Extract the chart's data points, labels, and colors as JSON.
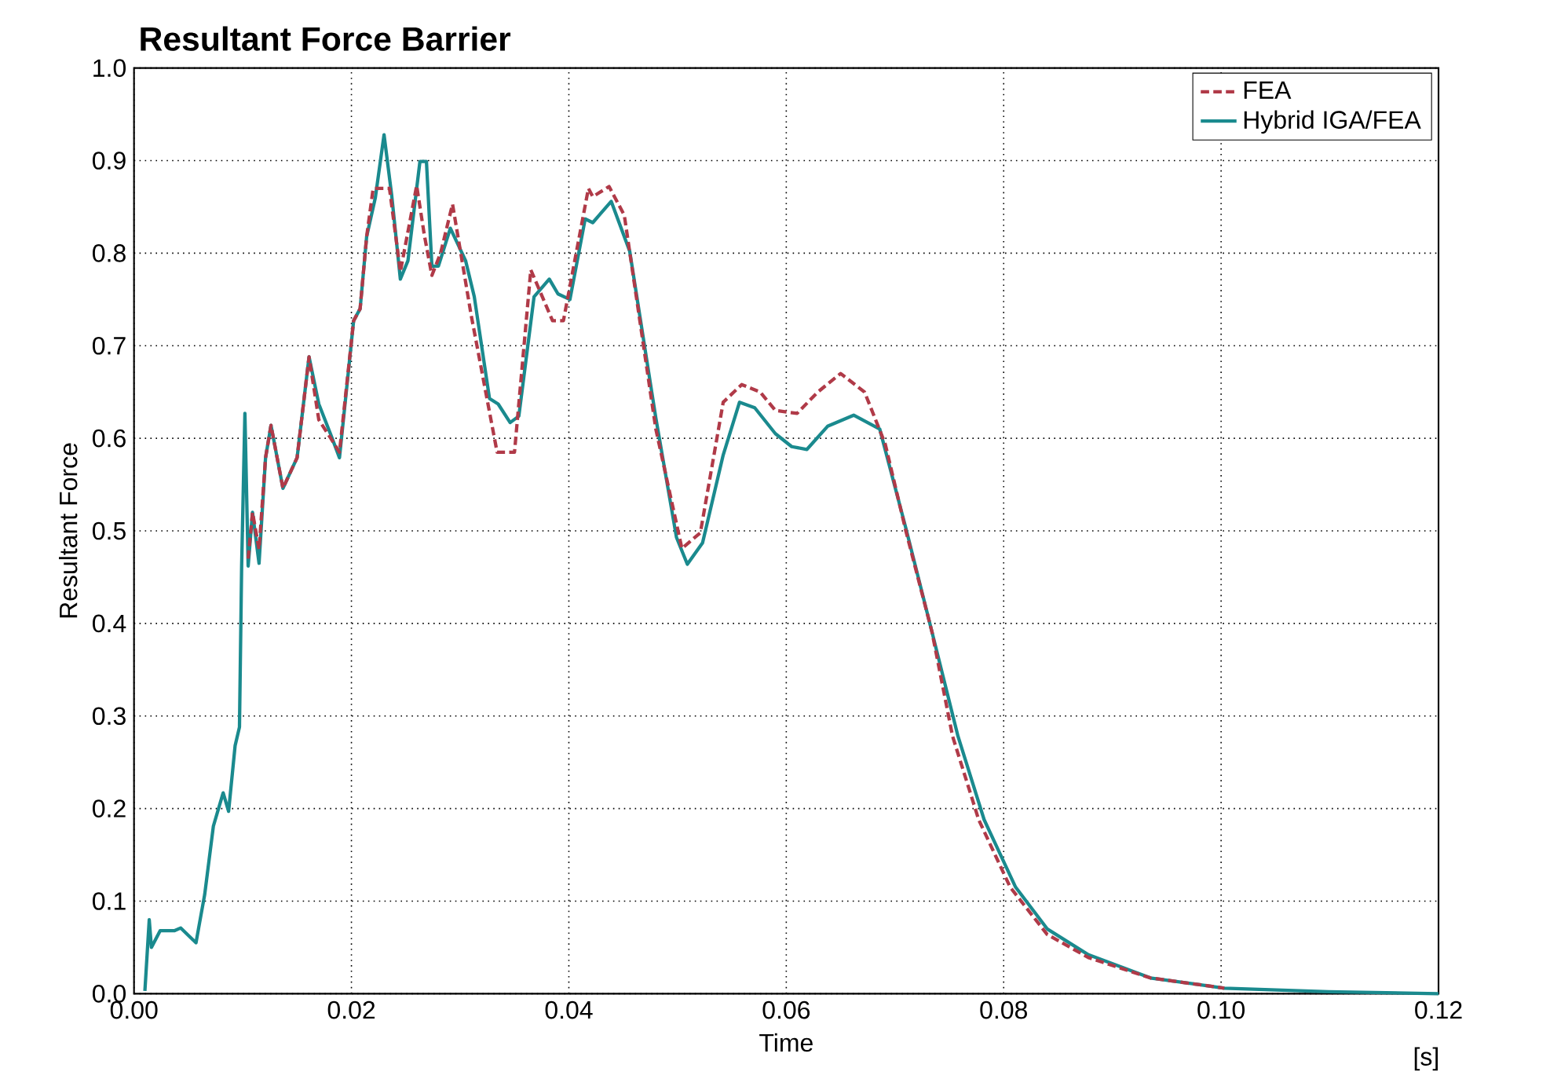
{
  "chart_data": {
    "type": "line",
    "title": "Resultant Force Barrier",
    "xlabel": "Time",
    "ylabel": "Resultant Force",
    "annotations": [
      "[s]"
    ],
    "xlim": [
      0,
      0.12
    ],
    "ylim": [
      0,
      1.0
    ],
    "xticks": [
      {
        "value": 0,
        "label": "0.00"
      },
      {
        "value": 0.02,
        "label": "0.02"
      },
      {
        "value": 0.04,
        "label": "0.04"
      },
      {
        "value": 0.06,
        "label": "0.06"
      },
      {
        "value": 0.08,
        "label": "0.08"
      },
      {
        "value": 0.1,
        "label": "0.10"
      },
      {
        "value": 0.12,
        "label": "0.12"
      }
    ],
    "yticks": [
      {
        "value": 0,
        "label": "0.0"
      },
      0.1,
      0.2,
      0.3,
      0.4,
      0.5,
      0.6,
      0.7,
      0.8,
      0.9,
      {
        "value": 1.0,
        "label": "1.0"
      }
    ],
    "grid": true,
    "legend": "top right",
    "series": [
      {
        "name": "FEA",
        "color": "#b03a48",
        "line_style": "dashed",
        "x": [
          0.0105,
          0.0109,
          0.0115,
          0.0121,
          0.0126,
          0.0137,
          0.015,
          0.0161,
          0.017,
          0.0181,
          0.0189,
          0.0202,
          0.0208,
          0.0214,
          0.022,
          0.0235,
          0.0245,
          0.026,
          0.0267,
          0.0274,
          0.0282,
          0.0293,
          0.031,
          0.0334,
          0.035,
          0.0365,
          0.0385,
          0.0395,
          0.0418,
          0.0422,
          0.0437,
          0.0451,
          0.048,
          0.0504,
          0.0521,
          0.0542,
          0.0559,
          0.0576,
          0.059,
          0.061,
          0.0629,
          0.065,
          0.0672,
          0.0691,
          0.071,
          0.0734,
          0.0753,
          0.0777,
          0.0806,
          0.084,
          0.0878,
          0.0935,
          0.1003
        ],
        "values": [
          0.47,
          0.52,
          0.48,
          0.579,
          0.614,
          0.546,
          0.579,
          0.688,
          0.62,
          0.6,
          0.585,
          0.727,
          0.74,
          0.818,
          0.87,
          0.87,
          0.78,
          0.873,
          0.82,
          0.776,
          0.8,
          0.853,
          0.734,
          0.585,
          0.585,
          0.782,
          0.727,
          0.727,
          0.87,
          0.861,
          0.872,
          0.841,
          0.61,
          0.481,
          0.498,
          0.639,
          0.658,
          0.65,
          0.63,
          0.627,
          0.65,
          0.67,
          0.65,
          0.594,
          0.5,
          0.391,
          0.278,
          0.188,
          0.115,
          0.064,
          0.039,
          0.017,
          0.006
        ]
      },
      {
        "name": "Hybrid IGA/FEA",
        "color": "#1a8a8e",
        "line_style": "solid",
        "x": [
          0.001,
          0.0014,
          0.0016,
          0.0024,
          0.0037,
          0.0043,
          0.0057,
          0.0065,
          0.0073,
          0.0082,
          0.0087,
          0.0093,
          0.0097,
          0.0099,
          0.0102,
          0.0105,
          0.0109,
          0.0115,
          0.0121,
          0.0126,
          0.0137,
          0.015,
          0.0161,
          0.017,
          0.0181,
          0.0189,
          0.0202,
          0.0208,
          0.0214,
          0.0222,
          0.023,
          0.0237,
          0.0245,
          0.0252,
          0.0263,
          0.0269,
          0.0274,
          0.028,
          0.0291,
          0.0305,
          0.0313,
          0.0327,
          0.0335,
          0.0346,
          0.0354,
          0.0368,
          0.0382,
          0.039,
          0.0401,
          0.0415,
          0.0422,
          0.0439,
          0.0456,
          0.048,
          0.0499,
          0.0509,
          0.0523,
          0.0542,
          0.0557,
          0.0571,
          0.059,
          0.0605,
          0.0619,
          0.0638,
          0.0662,
          0.0686,
          0.071,
          0.0734,
          0.0758,
          0.0782,
          0.0811,
          0.084,
          0.0878,
          0.0935,
          0.1003,
          0.1099,
          0.12
        ],
        "values": [
          0.003,
          0.08,
          0.05,
          0.068,
          0.068,
          0.071,
          0.055,
          0.107,
          0.181,
          0.217,
          0.197,
          0.268,
          0.288,
          0.462,
          0.627,
          0.462,
          0.52,
          0.465,
          0.579,
          0.614,
          0.546,
          0.579,
          0.688,
          0.637,
          0.604,
          0.579,
          0.727,
          0.74,
          0.818,
          0.86,
          0.928,
          0.863,
          0.772,
          0.792,
          0.899,
          0.899,
          0.786,
          0.786,
          0.827,
          0.792,
          0.753,
          0.643,
          0.637,
          0.617,
          0.624,
          0.753,
          0.772,
          0.756,
          0.75,
          0.837,
          0.833,
          0.856,
          0.802,
          0.622,
          0.493,
          0.464,
          0.487,
          0.582,
          0.639,
          0.633,
          0.605,
          0.591,
          0.588,
          0.613,
          0.625,
          0.61,
          0.503,
          0.391,
          0.278,
          0.188,
          0.115,
          0.07,
          0.042,
          0.017,
          0.006,
          0.002,
          0.0
        ]
      }
    ]
  }
}
